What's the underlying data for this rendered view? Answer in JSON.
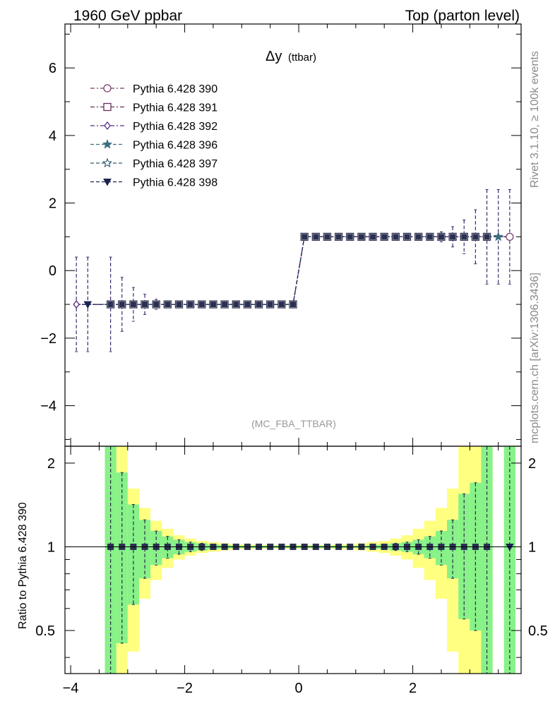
{
  "header": {
    "left": "1960 GeV ppbar",
    "right": "Top (parton level)"
  },
  "side_texts": {
    "rivet": "Rivet 3.1.10, ≥ 100k events",
    "mcplots": "mcplots.cern.ch [arXiv:1306.3436]"
  },
  "chart_data": [
    {
      "type": "line",
      "title": "Δy",
      "title_sub": "(ttbar)",
      "watermark": "(MC_FBA_TTBAR)",
      "xlim": [
        -4.1,
        3.9
      ],
      "ylim": [
        -5.2,
        7.3
      ],
      "xticks": [
        -4,
        -2,
        0,
        2
      ],
      "yticks": [
        -4,
        -2,
        0,
        2,
        4,
        6
      ],
      "legend_position": "top-left",
      "legend": [
        {
          "name": "Pythia 6.428 390",
          "color": "#7b3f6e",
          "marker": "open-circle",
          "dash": "6,3,2,3"
        },
        {
          "name": "Pythia 6.428 391",
          "color": "#6b2f5e",
          "marker": "open-square",
          "dash": "6,3,2,3"
        },
        {
          "name": "Pythia 6.428 392",
          "color": "#5a2a82",
          "marker": "open-diamond",
          "dash": "6,3,2,3"
        },
        {
          "name": "Pythia 6.428 396",
          "color": "#3e6e80",
          "marker": "star",
          "dash": "5,3"
        },
        {
          "name": "Pythia 6.428 397",
          "color": "#2f5a70",
          "marker": "open-star",
          "dash": "5,3"
        },
        {
          "name": "Pythia 6.428 398",
          "color": "#1c2450",
          "marker": "down-triangle",
          "dash": "5,3"
        }
      ],
      "x": [
        -3.9,
        -3.7,
        -3.3,
        -3.1,
        -2.9,
        -2.7,
        -2.5,
        -2.3,
        -2.1,
        -1.9,
        -1.7,
        -1.5,
        -1.3,
        -1.1,
        -0.9,
        -0.7,
        -0.5,
        -0.3,
        -0.1,
        0.1,
        0.3,
        0.5,
        0.7,
        0.9,
        1.1,
        1.3,
        1.5,
        1.7,
        1.9,
        2.1,
        2.3,
        2.5,
        2.7,
        2.9,
        3.1,
        3.3,
        3.5,
        3.7
      ],
      "y": [
        -1,
        -1,
        -1,
        -1,
        -1,
        -1,
        -1,
        -1,
        -1,
        -1,
        -1,
        -1,
        -1,
        -1,
        -1,
        -1,
        -1,
        -1,
        -1,
        1,
        1,
        1,
        1,
        1,
        1,
        1,
        1,
        1,
        1,
        1,
        1,
        1,
        1,
        1,
        1,
        1,
        1,
        1
      ],
      "yerr": [
        1.4,
        1.4,
        1.4,
        0.8,
        0.5,
        0.3,
        0.15,
        0.08,
        0.05,
        0.03,
        0.02,
        0.02,
        0.02,
        0.02,
        0.02,
        0.02,
        0.02,
        0.02,
        0.02,
        0.02,
        0.02,
        0.02,
        0.02,
        0.02,
        0.02,
        0.02,
        0.02,
        0.02,
        0.03,
        0.05,
        0.08,
        0.15,
        0.3,
        0.5,
        0.8,
        1.4,
        1.4,
        1.4
      ]
    },
    {
      "type": "line",
      "ylabel": "Ratio to Pythia 6.428 390",
      "xlim": [
        -4.1,
        3.9
      ],
      "ylim": [
        0.35,
        2.3
      ],
      "xticks": [
        -4,
        -2,
        0,
        2
      ],
      "yticks": [
        0.5,
        1,
        2
      ],
      "ytick_labels": [
        "0.5",
        "1",
        "2"
      ],
      "reference_line": 1,
      "x": [
        -3.3,
        -3.1,
        -2.9,
        -2.7,
        -2.5,
        -2.3,
        -2.1,
        -1.9,
        -1.7,
        -1.5,
        -1.3,
        -1.1,
        -0.9,
        -0.7,
        -0.5,
        -0.3,
        -0.1,
        0.1,
        0.3,
        0.5,
        0.7,
        0.9,
        1.1,
        1.3,
        1.5,
        1.7,
        1.9,
        2.1,
        2.3,
        2.5,
        2.7,
        2.9,
        3.1,
        3.3,
        3.7
      ],
      "y": [
        1,
        1,
        1,
        1,
        1,
        1,
        1,
        1,
        1,
        1,
        1,
        1,
        1,
        1,
        1,
        1,
        1,
        1,
        1,
        1,
        1,
        1,
        1,
        1,
        1,
        1,
        1,
        1,
        1,
        1,
        1,
        1,
        1,
        1,
        1
      ],
      "band_green": [
        [
          0.3,
          2.3
        ],
        [
          0.45,
          1.85
        ],
        [
          0.62,
          1.42
        ],
        [
          0.77,
          1.25
        ],
        [
          0.86,
          1.14
        ],
        [
          0.91,
          1.09
        ],
        [
          0.94,
          1.06
        ],
        [
          0.96,
          1.04
        ],
        [
          0.97,
          1.03
        ],
        [
          0.98,
          1.02
        ],
        [
          0.985,
          1.015
        ],
        [
          0.99,
          1.01
        ],
        [
          0.99,
          1.01
        ],
        [
          0.99,
          1.01
        ],
        [
          0.99,
          1.01
        ],
        [
          0.99,
          1.01
        ],
        [
          0.99,
          1.01
        ],
        [
          0.99,
          1.01
        ],
        [
          0.99,
          1.01
        ],
        [
          0.99,
          1.01
        ],
        [
          0.99,
          1.01
        ],
        [
          0.99,
          1.01
        ],
        [
          0.99,
          1.01
        ],
        [
          0.985,
          1.015
        ],
        [
          0.98,
          1.02
        ],
        [
          0.97,
          1.03
        ],
        [
          0.96,
          1.04
        ],
        [
          0.94,
          1.06
        ],
        [
          0.91,
          1.09
        ],
        [
          0.86,
          1.14
        ],
        [
          0.77,
          1.25
        ],
        [
          0.55,
          1.55
        ],
        [
          0.5,
          1.7
        ],
        [
          0.3,
          2.3
        ],
        [
          0.3,
          2.3
        ]
      ],
      "band_yellow": [
        [
          0.3,
          2.3
        ],
        [
          0.3,
          2.3
        ],
        [
          0.42,
          1.62
        ],
        [
          0.65,
          1.38
        ],
        [
          0.76,
          1.24
        ],
        [
          0.84,
          1.16
        ],
        [
          0.9,
          1.1
        ],
        [
          0.93,
          1.07
        ],
        [
          0.95,
          1.05
        ],
        [
          0.96,
          1.04
        ],
        [
          0.97,
          1.03
        ],
        [
          0.98,
          1.02
        ],
        [
          0.98,
          1.02
        ],
        [
          0.985,
          1.015
        ],
        [
          0.985,
          1.015
        ],
        [
          0.985,
          1.015
        ],
        [
          0.985,
          1.015
        ],
        [
          0.985,
          1.015
        ],
        [
          0.985,
          1.015
        ],
        [
          0.985,
          1.015
        ],
        [
          0.98,
          1.02
        ],
        [
          0.98,
          1.02
        ],
        [
          0.97,
          1.03
        ],
        [
          0.96,
          1.04
        ],
        [
          0.95,
          1.05
        ],
        [
          0.93,
          1.07
        ],
        [
          0.9,
          1.1
        ],
        [
          0.84,
          1.16
        ],
        [
          0.76,
          1.24
        ],
        [
          0.65,
          1.38
        ],
        [
          0.42,
          1.62
        ],
        [
          0.3,
          2.3
        ],
        [
          0.3,
          2.3
        ],
        [
          0.3,
          2.3
        ],
        [
          0.3,
          2.3
        ]
      ]
    }
  ]
}
